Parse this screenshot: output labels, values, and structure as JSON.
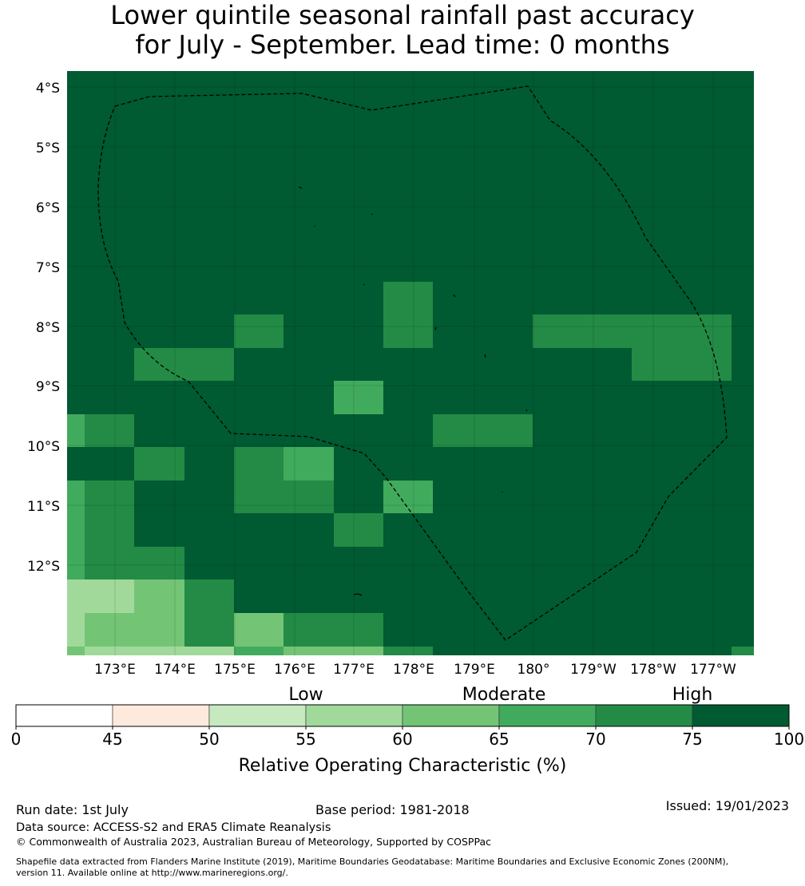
{
  "title": {
    "line1": "Lower quintile seasonal rainfall past accuracy",
    "line2": "for July - September. Lead time: 0 months"
  },
  "map": {
    "lat_labels": [
      "4°S",
      "5°S",
      "6°S",
      "7°S",
      "8°S",
      "9°S",
      "10°S",
      "11°S",
      "12°S"
    ],
    "lon_labels": [
      "173°E",
      "174°E",
      "175°E",
      "176°E",
      "177°E",
      "178°E",
      "179°E",
      "180°",
      "179°W",
      "178°W",
      "177°W"
    ],
    "background_color": "#005a32",
    "eez_boundary_style": "black dashed line"
  },
  "legend": {
    "categories": [
      "Low",
      "Moderate",
      "High"
    ],
    "ticks": [
      "0",
      "45",
      "50",
      "55",
      "60",
      "65",
      "70",
      "75",
      "100"
    ],
    "colors": [
      "#ffffff",
      "#fee9dd",
      "#c7e9c0",
      "#a1d99b",
      "#74c476",
      "#41ab5d",
      "#238b45",
      "#005a32"
    ],
    "label": "Relative Operating Characteristic (%)"
  },
  "footer": {
    "run_date": "Run date: 1st July",
    "base_period": "Base period: 1981-2018",
    "issued": "Issued: 19/01/2023",
    "data_source": "Data source: ACCESS-S2 and ERA5 Climate Reanalysis",
    "copyright": "© Commonwealth of Australia 2023, Australian Bureau of Meteorology, Supported by COSPPac",
    "shapefile_line1": "Shapefile data extracted from Flanders Marine Institute (2019), Maritime Boundaries Geodatabase: Maritime Boundaries and Exclusive Economic Zones (200NM),",
    "shapefile_line2": "version 11. Available online at http://www.marineregions.org/."
  }
}
